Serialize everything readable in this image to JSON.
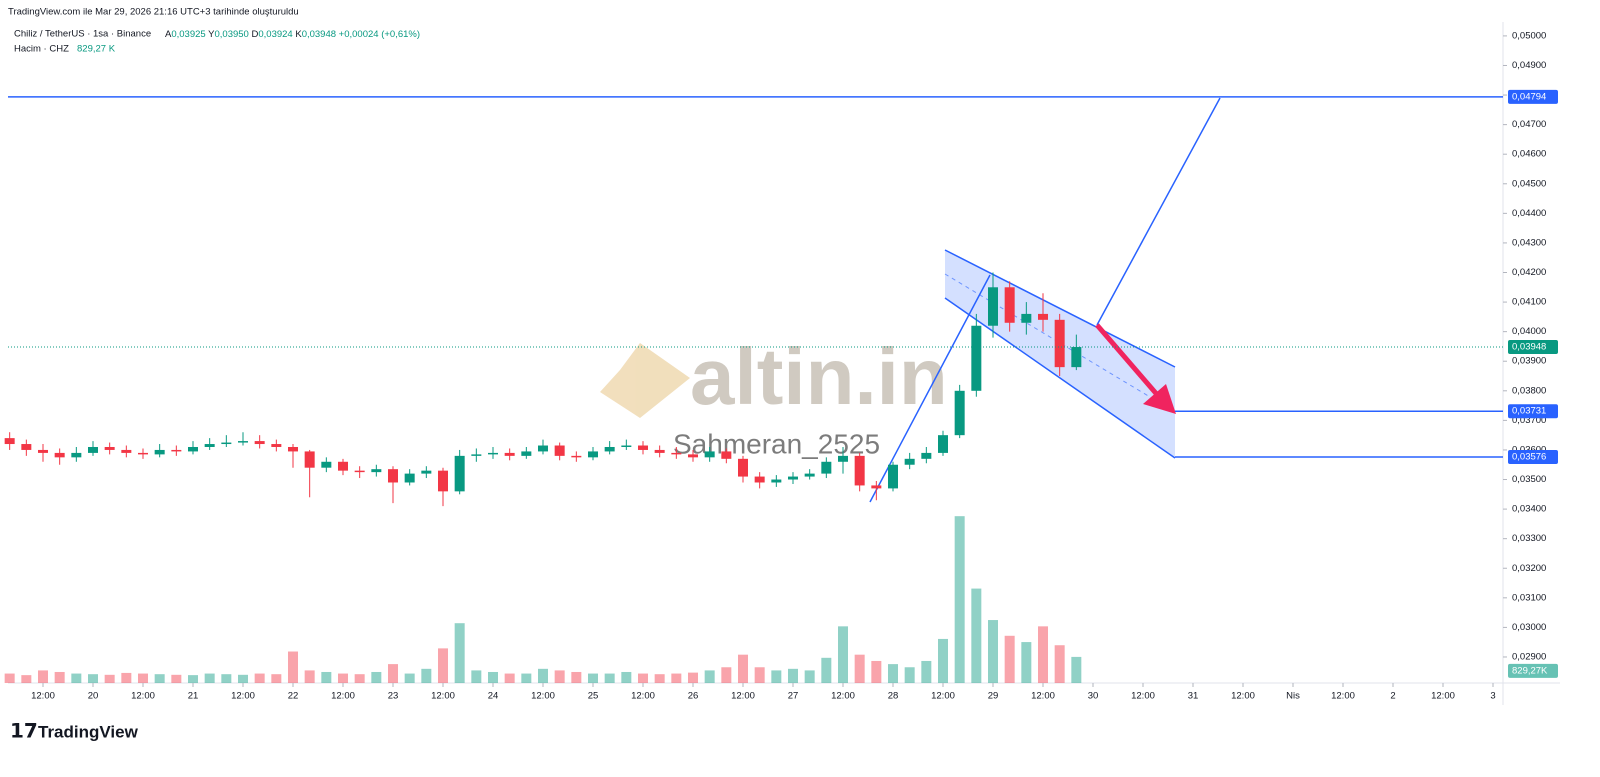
{
  "header": {
    "created_note": "TradingView.com ile Mar 29, 2026 21:16 UTC+3 tarihinde oluşturuldu"
  },
  "chart_data": {
    "type": "candlestick",
    "title": "Chiliz / TetherUS · 1sa · Binance",
    "ohlc_legend": [
      {
        "label": "A",
        "value": "0,03925"
      },
      {
        "label": "Y",
        "value": "0,03950"
      },
      {
        "label": "D",
        "value": "0,03924"
      },
      {
        "label": "K",
        "value": "0,03948"
      }
    ],
    "change_label": "+0,00024 (+0,61%)",
    "x": [
      4,
      8,
      12,
      16,
      20,
      24,
      28,
      32,
      36,
      40,
      44,
      48,
      52,
      56,
      60,
      64,
      68,
      72,
      76,
      80,
      84,
      88,
      92,
      96,
      100,
      104,
      108,
      112,
      116,
      120,
      124,
      128,
      132,
      136,
      140,
      144,
      148,
      152,
      156,
      160,
      164,
      168,
      172,
      176,
      180,
      184,
      188,
      192,
      196,
      200,
      204,
      208,
      212,
      216,
      220,
      224,
      228,
      232,
      236,
      240,
      244,
      248,
      252,
      256,
      260
    ],
    "open": [
      0.0364,
      0.0362,
      0.036,
      0.0359,
      0.03575,
      0.0359,
      0.0361,
      0.036,
      0.0359,
      0.03585,
      0.036,
      0.03595,
      0.0361,
      0.0362,
      0.03625,
      0.0363,
      0.0362,
      0.0361,
      0.03595,
      0.0354,
      0.0356,
      0.0353,
      0.03525,
      0.03535,
      0.0349,
      0.0352,
      0.0353,
      0.0346,
      0.0358,
      0.03585,
      0.0359,
      0.0358,
      0.03595,
      0.03615,
      0.0358,
      0.03575,
      0.03595,
      0.0361,
      0.03615,
      0.036,
      0.0359,
      0.03585,
      0.03575,
      0.03595,
      0.0357,
      0.0351,
      0.0349,
      0.035,
      0.0351,
      0.0352,
      0.0356,
      0.0358,
      0.0348,
      0.0347,
      0.0355,
      0.0357,
      0.0359,
      0.0365,
      0.038,
      0.0402,
      0.0415,
      0.0403,
      0.0406,
      0.0404,
      0.0388
    ],
    "high": [
      0.0366,
      0.03635,
      0.0362,
      0.03605,
      0.0361,
      0.0363,
      0.03625,
      0.03615,
      0.03605,
      0.0362,
      0.03615,
      0.0363,
      0.0364,
      0.0365,
      0.0366,
      0.0365,
      0.03635,
      0.0362,
      0.036,
      0.03575,
      0.0357,
      0.03545,
      0.0355,
      0.03545,
      0.03535,
      0.03545,
      0.0354,
      0.036,
      0.03605,
      0.0361,
      0.03605,
      0.0361,
      0.03635,
      0.03625,
      0.03595,
      0.0361,
      0.0363,
      0.03635,
      0.0363,
      0.03615,
      0.0361,
      0.036,
      0.0361,
      0.03605,
      0.0358,
      0.03525,
      0.03515,
      0.03525,
      0.03535,
      0.03575,
      0.0361,
      0.0359,
      0.03495,
      0.0356,
      0.0359,
      0.0361,
      0.03665,
      0.0382,
      0.0406,
      0.042,
      0.0417,
      0.041,
      0.0413,
      0.0406,
      0.0399
    ],
    "low": [
      0.036,
      0.0358,
      0.0356,
      0.0355,
      0.0356,
      0.0358,
      0.03585,
      0.03575,
      0.0357,
      0.03575,
      0.0358,
      0.03585,
      0.036,
      0.0361,
      0.03615,
      0.03605,
      0.03595,
      0.0354,
      0.0344,
      0.03525,
      0.03515,
      0.03505,
      0.0351,
      0.0342,
      0.0348,
      0.03505,
      0.0341,
      0.0345,
      0.0356,
      0.0357,
      0.03565,
      0.0357,
      0.03585,
      0.03565,
      0.0356,
      0.03565,
      0.03585,
      0.036,
      0.03585,
      0.03575,
      0.0357,
      0.0356,
      0.0356,
      0.03555,
      0.0349,
      0.0347,
      0.03475,
      0.03485,
      0.035,
      0.03505,
      0.0352,
      0.0346,
      0.0343,
      0.0346,
      0.03535,
      0.03555,
      0.0358,
      0.0364,
      0.0378,
      0.0398,
      0.04,
      0.0399,
      0.04,
      0.0385,
      0.0387
    ],
    "close": [
      0.0362,
      0.036,
      0.0359,
      0.03575,
      0.0359,
      0.0361,
      0.036,
      0.0359,
      0.03585,
      0.036,
      0.03595,
      0.0361,
      0.0362,
      0.03625,
      0.0363,
      0.0362,
      0.0361,
      0.03595,
      0.0354,
      0.0356,
      0.0353,
      0.03525,
      0.03535,
      0.0349,
      0.0352,
      0.0353,
      0.0346,
      0.0358,
      0.03585,
      0.0359,
      0.0358,
      0.03595,
      0.03615,
      0.0358,
      0.03575,
      0.03595,
      0.0361,
      0.03615,
      0.036,
      0.0359,
      0.03585,
      0.03575,
      0.03595,
      0.0357,
      0.0351,
      0.0349,
      0.035,
      0.0351,
      0.0352,
      0.0356,
      0.0358,
      0.0348,
      0.0347,
      0.0355,
      0.0357,
      0.0359,
      0.0365,
      0.038,
      0.0402,
      0.0415,
      0.0403,
      0.0406,
      0.0404,
      0.0388,
      0.03948
    ],
    "up_color": "#089981",
    "down_color": "#f23645",
    "volume": {
      "name": "Hacim · CHZ",
      "value_label": "829,27 K",
      "axis_label": "829,27K",
      "axis": "y2",
      "values": [
        300,
        250,
        400,
        350,
        300,
        280,
        260,
        320,
        300,
        280,
        260,
        250,
        300,
        280,
        260,
        300,
        280,
        1000,
        400,
        350,
        300,
        280,
        350,
        600,
        300,
        450,
        1100,
        1900,
        400,
        350,
        300,
        300,
        450,
        400,
        350,
        300,
        300,
        350,
        300,
        280,
        300,
        330,
        400,
        500,
        900,
        500,
        400,
        450,
        400,
        800,
        1800,
        900,
        700,
        600,
        500,
        700,
        1400,
        5300,
        3000,
        2000,
        1500,
        1300,
        1800,
        1200,
        829.27
      ]
    },
    "xlim": [
      3.6,
      362.4
    ],
    "ylim": [
      0.02812,
      0.05047
    ],
    "y2lim": [
      0,
      21000
    ],
    "xticks": [
      {
        "value": 12,
        "label": "12:00"
      },
      {
        "value": 24,
        "label": "20"
      },
      {
        "value": 36,
        "label": "12:00"
      },
      {
        "value": 48,
        "label": "21"
      },
      {
        "value": 60,
        "label": "12:00"
      },
      {
        "value": 72,
        "label": "22"
      },
      {
        "value": 84,
        "label": "12:00"
      },
      {
        "value": 96,
        "label": "23"
      },
      {
        "value": 108,
        "label": "12:00"
      },
      {
        "value": 120,
        "label": "24"
      },
      {
        "value": 132,
        "label": "12:00"
      },
      {
        "value": 144,
        "label": "25"
      },
      {
        "value": 156,
        "label": "12:00"
      },
      {
        "value": 168,
        "label": "26"
      },
      {
        "value": 180,
        "label": "12:00"
      },
      {
        "value": 192,
        "label": "27"
      },
      {
        "value": 204,
        "label": "12:00"
      },
      {
        "value": 216,
        "label": "28"
      },
      {
        "value": 228,
        "label": "12:00"
      },
      {
        "value": 240,
        "label": "29"
      },
      {
        "value": 252,
        "label": "12:00"
      },
      {
        "value": 264,
        "label": "30"
      },
      {
        "value": 276,
        "label": "12:00"
      },
      {
        "value": 288,
        "label": "31"
      },
      {
        "value": 300,
        "label": "12:00"
      },
      {
        "value": 312,
        "label": "Nis"
      },
      {
        "value": 324,
        "label": "12:00"
      },
      {
        "value": 336,
        "label": "2"
      },
      {
        "value": 348,
        "label": "12:00"
      },
      {
        "value": 360,
        "label": "3"
      }
    ],
    "yticks": [
      {
        "value": 0.05,
        "label": "0,05000"
      },
      {
        "value": 0.049,
        "label": "0,04900"
      },
      {
        "value": 0.048,
        "label": "0,04800"
      },
      {
        "value": 0.047,
        "label": "0,04700"
      },
      {
        "value": 0.046,
        "label": "0,04600"
      },
      {
        "value": 0.045,
        "label": "0,04500"
      },
      {
        "value": 0.044,
        "label": "0,04400"
      },
      {
        "value": 0.043,
        "label": "0,04300"
      },
      {
        "value": 0.042,
        "label": "0,04200"
      },
      {
        "value": 0.041,
        "label": "0,04100"
      },
      {
        "value": 0.04,
        "label": "0,04000"
      },
      {
        "value": 0.039,
        "label": "0,03900"
      },
      {
        "value": 0.038,
        "label": "0,03800"
      },
      {
        "value": 0.037,
        "label": "0,03700"
      },
      {
        "value": 0.036,
        "label": "0,03600"
      },
      {
        "value": 0.035,
        "label": "0,03500"
      },
      {
        "value": 0.034,
        "label": "0,03400"
      },
      {
        "value": 0.033,
        "label": "0,03300"
      },
      {
        "value": 0.032,
        "label": "0,03200"
      },
      {
        "value": 0.031,
        "label": "0,03100"
      },
      {
        "value": 0.03,
        "label": "0,03000"
      },
      {
        "value": 0.029,
        "label": "0,02900"
      }
    ],
    "levels": [
      {
        "value": 0.04794,
        "label": "0,04794"
      },
      {
        "value": 0.03731,
        "label": "0,03731"
      },
      {
        "value": 0.03576,
        "label": "0,03576"
      }
    ],
    "level_color": "#2962ff",
    "last_price": {
      "value": 0.03948,
      "label": "0,03948"
    },
    "grid": false,
    "watermark": "altin.in",
    "author": "Sahmeran_2525"
  },
  "footer": {
    "brand": "TradingView"
  }
}
